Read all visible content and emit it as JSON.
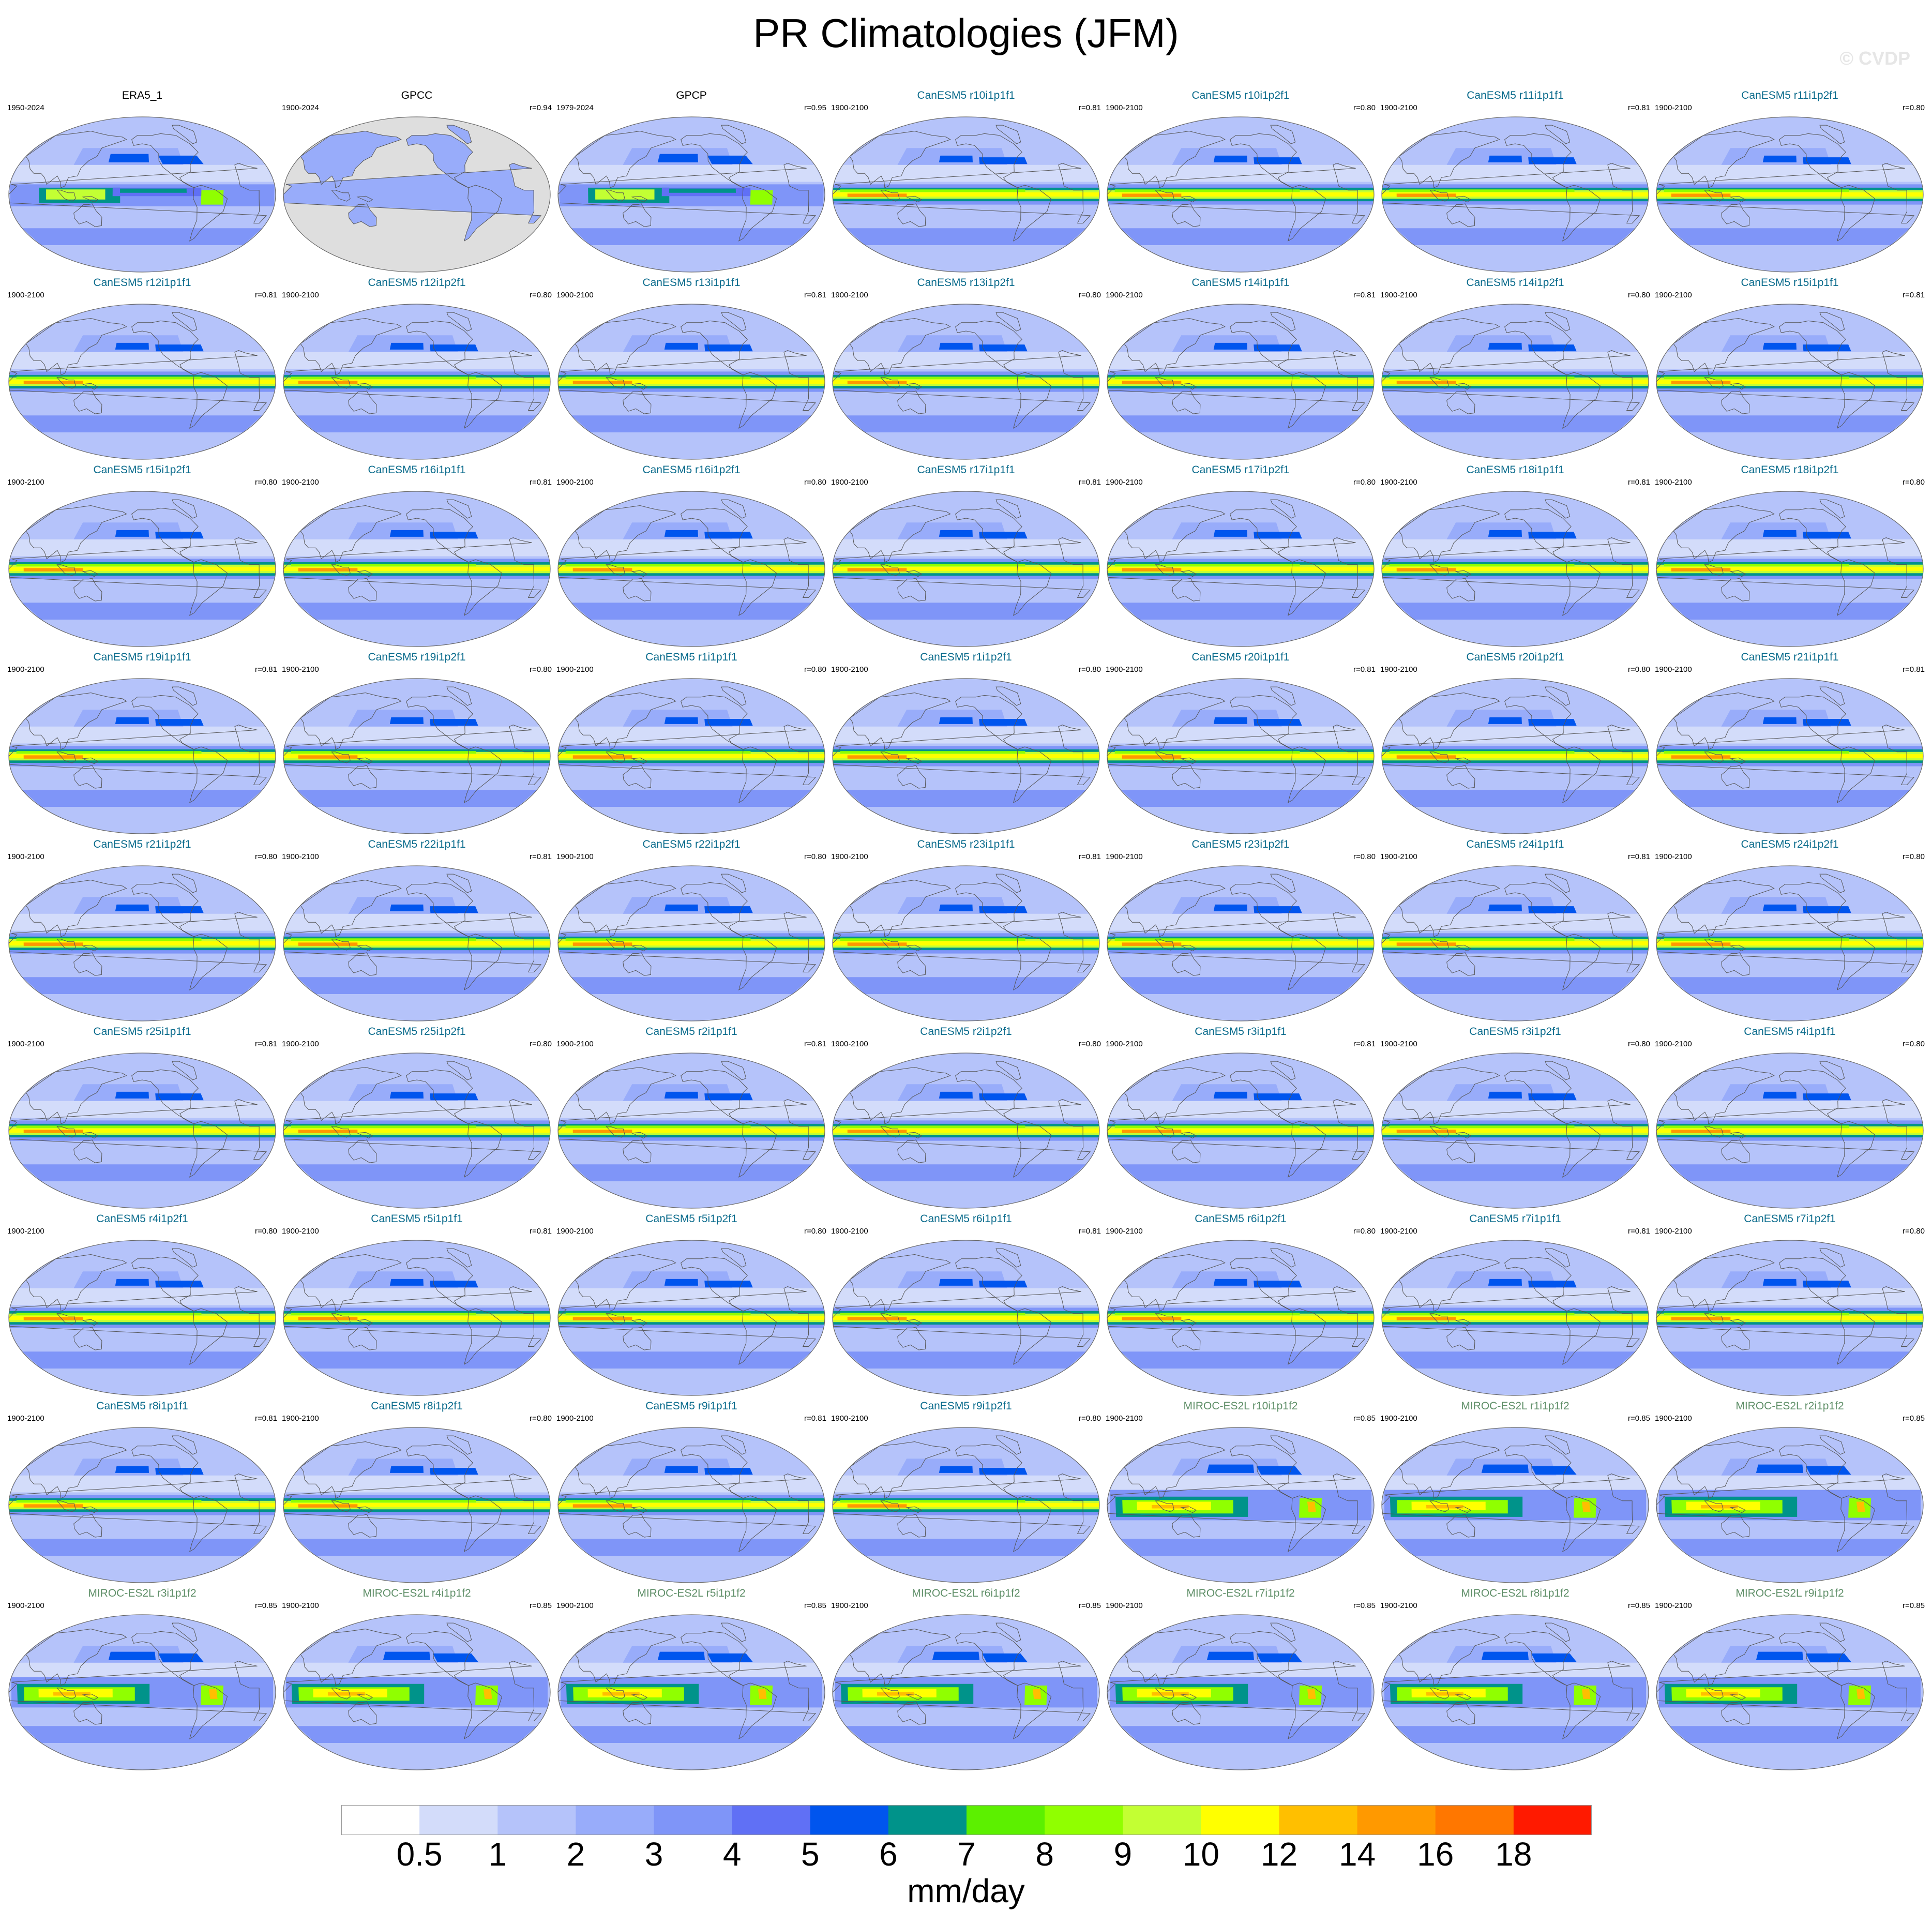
{
  "page": {
    "title": "PR Climatologies (JFM)",
    "watermark": "© CVDP"
  },
  "chart_data": {
    "type": "heatmap",
    "title": "PR Climatologies (JFM)",
    "variable": "PR",
    "season": "JFM",
    "projection": "robinson, pacific-centered",
    "grid": {
      "rows": 9,
      "cols": 7
    },
    "panels": [
      {
        "name": "ERA5_1",
        "years": "1950-2024",
        "r": "",
        "kind": "obs"
      },
      {
        "name": "GPCC",
        "years": "1900-2024",
        "r": "r=0.94",
        "kind": "obs-land"
      },
      {
        "name": "GPCP",
        "years": "1979-2024",
        "r": "r=0.95",
        "kind": "obs"
      },
      {
        "name": "CanESM5 r10i1p1f1",
        "years": "1900-2100",
        "r": "r=0.81",
        "kind": "canesm"
      },
      {
        "name": "CanESM5 r10i1p2f1",
        "years": "1900-2100",
        "r": "r=0.80",
        "kind": "canesm"
      },
      {
        "name": "CanESM5 r11i1p1f1",
        "years": "1900-2100",
        "r": "r=0.81",
        "kind": "canesm"
      },
      {
        "name": "CanESM5 r11i1p2f1",
        "years": "1900-2100",
        "r": "r=0.80",
        "kind": "canesm"
      },
      {
        "name": "CanESM5 r12i1p1f1",
        "years": "1900-2100",
        "r": "r=0.81",
        "kind": "canesm"
      },
      {
        "name": "CanESM5 r12i1p2f1",
        "years": "1900-2100",
        "r": "r=0.80",
        "kind": "canesm"
      },
      {
        "name": "CanESM5 r13i1p1f1",
        "years": "1900-2100",
        "r": "r=0.81",
        "kind": "canesm"
      },
      {
        "name": "CanESM5 r13i1p2f1",
        "years": "1900-2100",
        "r": "r=0.80",
        "kind": "canesm"
      },
      {
        "name": "CanESM5 r14i1p1f1",
        "years": "1900-2100",
        "r": "r=0.81",
        "kind": "canesm"
      },
      {
        "name": "CanESM5 r14i1p2f1",
        "years": "1900-2100",
        "r": "r=0.80",
        "kind": "canesm"
      },
      {
        "name": "CanESM5 r15i1p1f1",
        "years": "1900-2100",
        "r": "r=0.81",
        "kind": "canesm"
      },
      {
        "name": "CanESM5 r15i1p2f1",
        "years": "1900-2100",
        "r": "r=0.80",
        "kind": "canesm"
      },
      {
        "name": "CanESM5 r16i1p1f1",
        "years": "1900-2100",
        "r": "r=0.81",
        "kind": "canesm"
      },
      {
        "name": "CanESM5 r16i1p2f1",
        "years": "1900-2100",
        "r": "r=0.80",
        "kind": "canesm"
      },
      {
        "name": "CanESM5 r17i1p1f1",
        "years": "1900-2100",
        "r": "r=0.81",
        "kind": "canesm"
      },
      {
        "name": "CanESM5 r17i1p2f1",
        "years": "1900-2100",
        "r": "r=0.80",
        "kind": "canesm"
      },
      {
        "name": "CanESM5 r18i1p1f1",
        "years": "1900-2100",
        "r": "r=0.81",
        "kind": "canesm"
      },
      {
        "name": "CanESM5 r18i1p2f1",
        "years": "1900-2100",
        "r": "r=0.80",
        "kind": "canesm"
      },
      {
        "name": "CanESM5 r19i1p1f1",
        "years": "1900-2100",
        "r": "r=0.81",
        "kind": "canesm"
      },
      {
        "name": "CanESM5 r19i1p2f1",
        "years": "1900-2100",
        "r": "r=0.80",
        "kind": "canesm"
      },
      {
        "name": "CanESM5 r1i1p1f1",
        "years": "1900-2100",
        "r": "r=0.80",
        "kind": "canesm"
      },
      {
        "name": "CanESM5 r1i1p2f1",
        "years": "1900-2100",
        "r": "r=0.80",
        "kind": "canesm"
      },
      {
        "name": "CanESM5 r20i1p1f1",
        "years": "1900-2100",
        "r": "r=0.81",
        "kind": "canesm"
      },
      {
        "name": "CanESM5 r20i1p2f1",
        "years": "1900-2100",
        "r": "r=0.80",
        "kind": "canesm"
      },
      {
        "name": "CanESM5 r21i1p1f1",
        "years": "1900-2100",
        "r": "r=0.81",
        "kind": "canesm"
      },
      {
        "name": "CanESM5 r21i1p2f1",
        "years": "1900-2100",
        "r": "r=0.80",
        "kind": "canesm"
      },
      {
        "name": "CanESM5 r22i1p1f1",
        "years": "1900-2100",
        "r": "r=0.81",
        "kind": "canesm"
      },
      {
        "name": "CanESM5 r22i1p2f1",
        "years": "1900-2100",
        "r": "r=0.80",
        "kind": "canesm"
      },
      {
        "name": "CanESM5 r23i1p1f1",
        "years": "1900-2100",
        "r": "r=0.81",
        "kind": "canesm"
      },
      {
        "name": "CanESM5 r23i1p2f1",
        "years": "1900-2100",
        "r": "r=0.80",
        "kind": "canesm"
      },
      {
        "name": "CanESM5 r24i1p1f1",
        "years": "1900-2100",
        "r": "r=0.81",
        "kind": "canesm"
      },
      {
        "name": "CanESM5 r24i1p2f1",
        "years": "1900-2100",
        "r": "r=0.80",
        "kind": "canesm"
      },
      {
        "name": "CanESM5 r25i1p1f1",
        "years": "1900-2100",
        "r": "r=0.81",
        "kind": "canesm"
      },
      {
        "name": "CanESM5 r25i1p2f1",
        "years": "1900-2100",
        "r": "r=0.80",
        "kind": "canesm"
      },
      {
        "name": "CanESM5 r2i1p1f1",
        "years": "1900-2100",
        "r": "r=0.81",
        "kind": "canesm"
      },
      {
        "name": "CanESM5 r2i1p2f1",
        "years": "1900-2100",
        "r": "r=0.80",
        "kind": "canesm"
      },
      {
        "name": "CanESM5 r3i1p1f1",
        "years": "1900-2100",
        "r": "r=0.81",
        "kind": "canesm"
      },
      {
        "name": "CanESM5 r3i1p2f1",
        "years": "1900-2100",
        "r": "r=0.80",
        "kind": "canesm"
      },
      {
        "name": "CanESM5 r4i1p1f1",
        "years": "1900-2100",
        "r": "r=0.80",
        "kind": "canesm"
      },
      {
        "name": "CanESM5 r4i1p2f1",
        "years": "1900-2100",
        "r": "r=0.80",
        "kind": "canesm"
      },
      {
        "name": "CanESM5 r5i1p1f1",
        "years": "1900-2100",
        "r": "r=0.81",
        "kind": "canesm"
      },
      {
        "name": "CanESM5 r5i1p2f1",
        "years": "1900-2100",
        "r": "r=0.80",
        "kind": "canesm"
      },
      {
        "name": "CanESM5 r6i1p1f1",
        "years": "1900-2100",
        "r": "r=0.81",
        "kind": "canesm"
      },
      {
        "name": "CanESM5 r6i1p2f1",
        "years": "1900-2100",
        "r": "r=0.80",
        "kind": "canesm"
      },
      {
        "name": "CanESM5 r7i1p1f1",
        "years": "1900-2100",
        "r": "r=0.81",
        "kind": "canesm"
      },
      {
        "name": "CanESM5 r7i1p2f1",
        "years": "1900-2100",
        "r": "r=0.80",
        "kind": "canesm"
      },
      {
        "name": "CanESM5 r8i1p1f1",
        "years": "1900-2100",
        "r": "r=0.81",
        "kind": "canesm"
      },
      {
        "name": "CanESM5 r8i1p2f1",
        "years": "1900-2100",
        "r": "r=0.80",
        "kind": "canesm"
      },
      {
        "name": "CanESM5 r9i1p1f1",
        "years": "1900-2100",
        "r": "r=0.81",
        "kind": "canesm"
      },
      {
        "name": "CanESM5 r9i1p2f1",
        "years": "1900-2100",
        "r": "r=0.80",
        "kind": "canesm"
      },
      {
        "name": "MIROC-ES2L r10i1p1f2",
        "years": "1900-2100",
        "r": "r=0.85",
        "kind": "miroc"
      },
      {
        "name": "MIROC-ES2L r1i1p1f2",
        "years": "1900-2100",
        "r": "r=0.85",
        "kind": "miroc"
      },
      {
        "name": "MIROC-ES2L r2i1p1f2",
        "years": "1900-2100",
        "r": "r=0.85",
        "kind": "miroc"
      },
      {
        "name": "MIROC-ES2L r3i1p1f2",
        "years": "1900-2100",
        "r": "r=0.85",
        "kind": "miroc"
      },
      {
        "name": "MIROC-ES2L r4i1p1f2",
        "years": "1900-2100",
        "r": "r=0.85",
        "kind": "miroc"
      },
      {
        "name": "MIROC-ES2L r5i1p1f2",
        "years": "1900-2100",
        "r": "r=0.85",
        "kind": "miroc"
      },
      {
        "name": "MIROC-ES2L r6i1p1f2",
        "years": "1900-2100",
        "r": "r=0.85",
        "kind": "miroc"
      },
      {
        "name": "MIROC-ES2L r7i1p1f2",
        "years": "1900-2100",
        "r": "r=0.85",
        "kind": "miroc"
      },
      {
        "name": "MIROC-ES2L r8i1p1f2",
        "years": "1900-2100",
        "r": "r=0.85",
        "kind": "miroc"
      },
      {
        "name": "MIROC-ES2L r9i1p1f2",
        "years": "1900-2100",
        "r": "r=0.85",
        "kind": "miroc"
      }
    ],
    "title_colors": {
      "obs": "#000000",
      "canesm": "#0a6b8c",
      "miroc": "#5f8f68"
    },
    "map_colors": {
      "ocean_base": "#b8c4fa",
      "land_obs_gray": "#dedede",
      "coastline": "#555555",
      "border": "#666666"
    },
    "colorbar": {
      "levels": [
        0.5,
        1,
        2,
        3,
        4,
        5,
        6,
        7,
        8,
        9,
        10,
        12,
        14,
        16,
        18
      ],
      "tick_labels": [
        "0.5",
        "1",
        "2",
        "3",
        "4",
        "5",
        "6",
        "7",
        "8",
        "9",
        "10",
        "12",
        "14",
        "16",
        "18"
      ],
      "colors": [
        "#ffffff",
        "#d3dcfa",
        "#b5c3fa",
        "#98acfa",
        "#7f95f8",
        "#6070f5",
        "#0055ee",
        "#00938a",
        "#5cf000",
        "#90ff00",
        "#c3ff33",
        "#ffff00",
        "#ffbf00",
        "#ff9900",
        "#ff7700",
        "#ff1a00"
      ],
      "units": "mm/day"
    }
  }
}
